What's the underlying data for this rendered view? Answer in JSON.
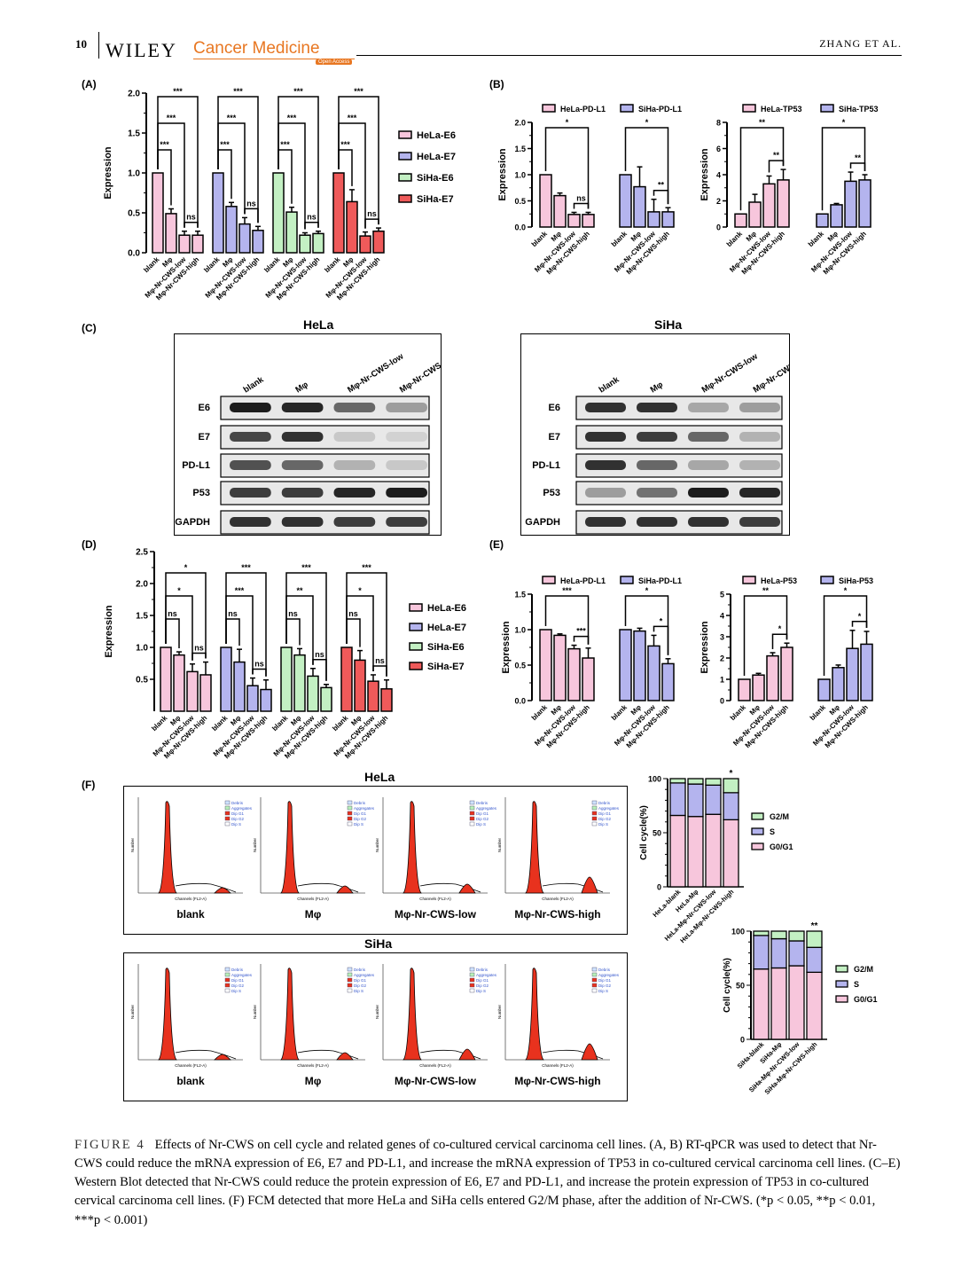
{
  "header": {
    "page_number": "10",
    "publisher": "WILEY",
    "journal": "Cancer Medicine",
    "open_access": "Open Access",
    "running_head": "ZHANG ET AL."
  },
  "colors": {
    "pink": "#f7c6dc",
    "blue": "#b4b4ee",
    "green": "#c3f0c3",
    "red": "#ef5a5a",
    "flow_red": "#e8321e"
  },
  "panels": {
    "A": "(A)",
    "B": "(B)",
    "C": "(C)",
    "D": "(D)",
    "E": "(E)",
    "F": "(F)"
  },
  "western_blot": {
    "hela_title": "HeLa",
    "siha_title": "SiHa",
    "lanes": [
      "blank",
      "Mφ",
      "Mφ-Nr-CWS-low",
      "Mφ-Nr-CWS-high"
    ],
    "rows": [
      "E6",
      "E7",
      "PD-L1",
      "P53",
      "GAPDH"
    ]
  },
  "flow": {
    "hela_title": "HeLa",
    "siha_title": "SiHa",
    "conditions": [
      "blank",
      "Mφ",
      "Mφ-Nr-CWS-low",
      "Mφ-Nr-CWS-high"
    ],
    "legend": [
      "Debris",
      "Aggregates",
      "Dip G1",
      "Dip G2",
      "Dip S"
    ],
    "xlabel": "Channels (FL2-A)",
    "ylabel": "Number"
  },
  "chart_data": [
    {
      "id": "A",
      "type": "bar",
      "ylabel": "Expression",
      "ylim": [
        0,
        2.0
      ],
      "yticks": [
        "0.0",
        "0.5",
        "1.0",
        "1.5",
        "2.0"
      ],
      "categories": [
        "blank",
        "Mφ",
        "Mφ-Nr-CWS-low",
        "Mφ-Nr-CWS-high"
      ],
      "legend": [
        "HeLa-E6",
        "HeLa-E7",
        "SiHa-E6",
        "SiHa-E7"
      ],
      "series": [
        {
          "name": "HeLa-E6",
          "color": "pink",
          "values": [
            1.0,
            0.49,
            0.22,
            0.22
          ],
          "errors": [
            0,
            0.06,
            0.05,
            0.05
          ]
        },
        {
          "name": "HeLa-E7",
          "color": "blue",
          "values": [
            1.0,
            0.58,
            0.36,
            0.28
          ],
          "errors": [
            0,
            0.05,
            0.08,
            0.05
          ]
        },
        {
          "name": "SiHa-E6",
          "color": "green",
          "values": [
            1.0,
            0.51,
            0.22,
            0.24
          ],
          "errors": [
            0,
            0.06,
            0.03,
            0.03
          ]
        },
        {
          "name": "SiHa-E7",
          "color": "red",
          "values": [
            1.0,
            0.64,
            0.21,
            0.27
          ],
          "errors": [
            0,
            0.15,
            0.05,
            0.04
          ]
        }
      ],
      "annotations": [
        [
          "***",
          "***",
          "***",
          "***"
        ],
        [
          "***",
          "***",
          "***",
          "***"
        ],
        [
          "***",
          "***",
          "***",
          "***"
        ],
        [
          "ns",
          "ns",
          "ns",
          "ns"
        ]
      ]
    },
    {
      "id": "B1",
      "type": "bar",
      "ylabel": "Expression",
      "ylim": [
        0,
        2.0
      ],
      "yticks": [
        "0.0",
        "0.5",
        "1.0",
        "1.5",
        "2.0"
      ],
      "categories": [
        "blank",
        "Mφ",
        "Mφ-Nr-CWS-low",
        "Mφ-Nr-CWS-high"
      ],
      "legend": [
        "HeLa-PD-L1",
        "SiHa-PD-L1"
      ],
      "series": [
        {
          "name": "HeLa-PD-L1",
          "color": "pink",
          "values": [
            1.0,
            0.6,
            0.24,
            0.24
          ],
          "errors": [
            0,
            0.05,
            0.04,
            0.04
          ]
        },
        {
          "name": "SiHa-PD-L1",
          "color": "blue",
          "values": [
            1.0,
            0.77,
            0.29,
            0.29
          ],
          "errors": [
            0,
            0.38,
            0.24,
            0.08
          ]
        }
      ],
      "annotations": [
        [
          "*",
          "*",
          "*",
          "ns"
        ],
        [
          "ns",
          "**",
          "**",
          "ns"
        ]
      ]
    },
    {
      "id": "B2",
      "type": "bar",
      "ylabel": "Expression",
      "ylim": [
        0,
        8
      ],
      "yticks": [
        "0",
        "2",
        "4",
        "6",
        "8"
      ],
      "categories": [
        "blank",
        "Mφ",
        "Mφ-Nr-CWS-low",
        "Mφ-Nr-CWS-high"
      ],
      "legend": [
        "HeLa-TP53",
        "SiHa-TP53"
      ],
      "series": [
        {
          "name": "HeLa-TP53",
          "color": "pink",
          "values": [
            1.0,
            1.9,
            3.3,
            3.6
          ],
          "errors": [
            0,
            0.6,
            0.6,
            0.8
          ]
        },
        {
          "name": "SiHa-TP53",
          "color": "blue",
          "values": [
            1.0,
            1.7,
            3.5,
            3.6
          ],
          "errors": [
            0,
            0.1,
            0.7,
            0.4
          ]
        }
      ],
      "annotations": [
        [
          "**",
          "*",
          "ns",
          "ns"
        ],
        [
          "**",
          "**",
          "ns",
          "ns"
        ]
      ]
    },
    {
      "id": "D",
      "type": "bar",
      "ylabel": "Expression",
      "ylim": [
        0,
        2.5
      ],
      "yticks": [
        "0.5",
        "1.0",
        "1.5",
        "2.0",
        "2.5"
      ],
      "categories": [
        "blank",
        "Mφ",
        "Mφ-Nr-CWS-low",
        "Mφ-Nr-CWS-high"
      ],
      "legend": [
        "HeLa-E6",
        "HeLa-E7",
        "SiHa-E6",
        "SiHa-E7"
      ],
      "series": [
        {
          "name": "HeLa-E6",
          "color": "pink",
          "values": [
            1.0,
            0.88,
            0.62,
            0.57
          ],
          "errors": [
            0,
            0.05,
            0.12,
            0.2
          ]
        },
        {
          "name": "HeLa-E7",
          "color": "blue",
          "values": [
            1.0,
            0.77,
            0.4,
            0.34
          ],
          "errors": [
            0,
            0.2,
            0.12,
            0.15
          ]
        },
        {
          "name": "SiHa-E6",
          "color": "green",
          "values": [
            1.0,
            0.88,
            0.55,
            0.37
          ],
          "errors": [
            0,
            0.1,
            0.12,
            0.05
          ]
        },
        {
          "name": "SiHa-E7",
          "color": "red",
          "values": [
            1.0,
            0.8,
            0.47,
            0.35
          ],
          "errors": [
            0,
            0.15,
            0.1,
            0.14
          ]
        }
      ],
      "annotations": [
        [
          "*",
          "***",
          "***",
          "***"
        ],
        [
          "*",
          "***",
          "**",
          "*"
        ],
        [
          "ns",
          "ns",
          "ns",
          "ns"
        ],
        [
          "ns",
          "ns",
          "ns",
          "ns"
        ]
      ]
    },
    {
      "id": "E1",
      "type": "bar",
      "ylabel": "Expression",
      "ylim": [
        0,
        1.5
      ],
      "yticks": [
        "0.0",
        "0.5",
        "1.0",
        "1.5"
      ],
      "categories": [
        "blank",
        "Mφ",
        "Mφ-Nr-CWS-low",
        "Mφ-Nr-CWS-high"
      ],
      "legend": [
        "HeLa-PD-L1",
        "SiHa-PD-L1"
      ],
      "series": [
        {
          "name": "HeLa-PD-L1",
          "color": "pink",
          "values": [
            1.0,
            0.92,
            0.73,
            0.6
          ],
          "errors": [
            0,
            0.02,
            0.05,
            0.14
          ]
        },
        {
          "name": "SiHa-PD-L1",
          "color": "blue",
          "values": [
            1.0,
            0.98,
            0.77,
            0.52
          ],
          "errors": [
            0,
            0.04,
            0.15,
            0.07
          ]
        }
      ],
      "annotations": [
        [
          "***",
          "*",
          "ns",
          "ns"
        ],
        [
          "***",
          "*",
          "ns",
          "**"
        ]
      ]
    },
    {
      "id": "E2",
      "type": "bar",
      "ylabel": "Expression",
      "ylim": [
        0,
        5
      ],
      "yticks": [
        "0",
        "1",
        "2",
        "3",
        "4",
        "5"
      ],
      "categories": [
        "blank",
        "Mφ",
        "Mφ-Nr-CWS-low",
        "Mφ-Nr-CWS-high"
      ],
      "legend": [
        "HeLa-P53",
        "SiHa-P53"
      ],
      "series": [
        {
          "name": "HeLa-P53",
          "color": "pink",
          "values": [
            1.0,
            1.2,
            2.1,
            2.5
          ],
          "errors": [
            0,
            0.08,
            0.15,
            0.2
          ]
        },
        {
          "name": "SiHa-P53",
          "color": "blue",
          "values": [
            1.0,
            1.55,
            2.45,
            2.65
          ],
          "errors": [
            0,
            0.12,
            0.85,
            0.6
          ]
        }
      ],
      "annotations": [
        [
          "**",
          "*",
          "ns",
          "ns"
        ],
        [
          "*",
          "*",
          "ns",
          "ns"
        ]
      ]
    },
    {
      "id": "F1",
      "type": "bar",
      "stacked": true,
      "ylabel": "Cell cycle(%)",
      "ylim": [
        0,
        100
      ],
      "yticks": [
        "0",
        "50",
        "100"
      ],
      "categories": [
        "HeLa-blank",
        "HeLa-Mφ",
        "HeLa-Mφ-Nr-CWS-low",
        "HeLa-Mφ-Nr-CWS-high"
      ],
      "legend": [
        "G2/M",
        "S",
        "G0/G1"
      ],
      "series": [
        {
          "name": "G0/G1",
          "color": "pink",
          "values": [
            66,
            65,
            67,
            62
          ]
        },
        {
          "name": "S",
          "color": "blue",
          "values": [
            30,
            30,
            27,
            25
          ]
        },
        {
          "name": "G2/M",
          "color": "green",
          "values": [
            4,
            5,
            6,
            13
          ]
        }
      ],
      "significance": [
        "",
        "",
        "",
        "*"
      ]
    },
    {
      "id": "F2",
      "type": "bar",
      "stacked": true,
      "ylabel": "Cell cycle(%)",
      "ylim": [
        0,
        100
      ],
      "yticks": [
        "0",
        "50",
        "100"
      ],
      "categories": [
        "SiHa-blank",
        "SiHa-Mφ",
        "SiHa-Mφ-Nr-CWS-low",
        "SiHa-Mφ-Nr-CWS-high"
      ],
      "legend": [
        "G2/M",
        "S",
        "G0/G1"
      ],
      "series": [
        {
          "name": "G0/G1",
          "color": "pink",
          "values": [
            65,
            66,
            68,
            62
          ]
        },
        {
          "name": "S",
          "color": "blue",
          "values": [
            31,
            27,
            23,
            23
          ]
        },
        {
          "name": "G2/M",
          "color": "green",
          "values": [
            4,
            7,
            9,
            15
          ]
        }
      ],
      "significance": [
        "",
        "",
        "",
        "**"
      ]
    }
  ],
  "caption": {
    "label": "FIGURE 4",
    "text": "Effects of Nr-CWS on cell cycle and related genes of co-cultured cervical carcinoma cell lines. (A, B) RT-qPCR was used to detect that Nr-CWS could reduce the mRNA expression of E6, E7 and PD-L1, and increase the mRNA expression of TP53 in co-cultured cervical carcinoma cell lines. (C–E) Western Blot detected that Nr-CWS could reduce the protein expression of E6, E7 and PD-L1, and increase the protein expression of TP53 in co-cultured cervical carcinoma cell lines. (F) FCM detected that more HeLa and SiHa cells entered G2/M phase, after the addition of Nr-CWS. (*p < 0.05, **p < 0.01, ***p < 0.001)"
  }
}
